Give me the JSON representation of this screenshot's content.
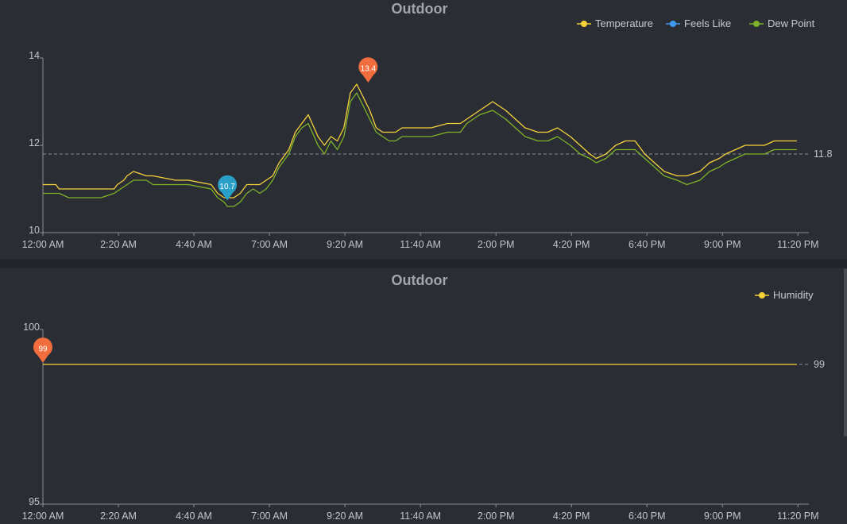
{
  "chart_data": [
    {
      "type": "line",
      "title": "Outdoor",
      "x_ticks": [
        "12:00 AM",
        "2:20 AM",
        "4:40 AM",
        "7:00 AM",
        "9:20 AM",
        "11:40 AM",
        "2:00 PM",
        "4:20 PM",
        "6:40 PM",
        "9:00 PM",
        "11:20 PM"
      ],
      "x_range_hours": [
        0,
        23.67
      ],
      "y_ticks": [
        "10",
        "12",
        "14"
      ],
      "ylim": [
        10,
        14
      ],
      "legend_position": "top-right",
      "grid": false,
      "series": [
        {
          "name": "Temperature",
          "color": "#f5d23a",
          "x": [
            0,
            0.4,
            0.5,
            2.2,
            2.3,
            2.5,
            2.6,
            2.8,
            3.2,
            3.4,
            4.1,
            4.5,
            5.2,
            5.4,
            5.6,
            5.7,
            5.9,
            6.1,
            6.3,
            6.5,
            6.7,
            6.9,
            7.1,
            7.3,
            7.6,
            7.8,
            8.0,
            8.2,
            8.5,
            8.7,
            8.9,
            9.1,
            9.3,
            9.5,
            9.7,
            9.9,
            10.1,
            10.3,
            10.5,
            10.7,
            10.9,
            11.1,
            11.5,
            12.0,
            12.5,
            12.9,
            13.1,
            13.5,
            13.9,
            14.1,
            14.3,
            14.6,
            14.9,
            15.3,
            15.6,
            15.9,
            16.1,
            16.3,
            16.6,
            16.9,
            17.1,
            17.4,
            17.7,
            18.0,
            18.3,
            18.6,
            18.9,
            19.2,
            19.6,
            19.9,
            20.3,
            20.6,
            20.9,
            21.1,
            21.4,
            21.7,
            22.0,
            22.3,
            22.6,
            22.9,
            23.3
          ],
          "y": [
            11.1,
            11.1,
            11.0,
            11.0,
            11.1,
            11.2,
            11.3,
            11.4,
            11.3,
            11.3,
            11.2,
            11.2,
            11.1,
            10.9,
            10.8,
            10.8,
            10.8,
            10.9,
            11.1,
            11.1,
            11.1,
            11.2,
            11.3,
            11.6,
            11.9,
            12.3,
            12.5,
            12.7,
            12.2,
            12.0,
            12.2,
            12.1,
            12.4,
            13.2,
            13.4,
            13.1,
            12.8,
            12.4,
            12.3,
            12.3,
            12.3,
            12.4,
            12.4,
            12.4,
            12.5,
            12.5,
            12.6,
            12.8,
            13.0,
            12.9,
            12.8,
            12.6,
            12.4,
            12.3,
            12.3,
            12.4,
            12.3,
            12.2,
            12.0,
            11.8,
            11.7,
            11.8,
            12.0,
            12.1,
            12.1,
            11.8,
            11.6,
            11.4,
            11.3,
            11.3,
            11.4,
            11.6,
            11.7,
            11.8,
            11.9,
            12.0,
            12.0,
            12.0,
            12.1,
            12.1,
            12.1
          ]
        },
        {
          "name": "Feels Like",
          "color": "#3f9bf2",
          "x": [],
          "y": []
        },
        {
          "name": "Dew Point",
          "color": "#7fb327",
          "x": [
            0,
            0.5,
            0.8,
            1.8,
            2.2,
            2.4,
            2.6,
            2.8,
            3.2,
            3.4,
            4.1,
            4.5,
            5.2,
            5.4,
            5.6,
            5.7,
            5.9,
            6.1,
            6.3,
            6.5,
            6.7,
            6.9,
            7.1,
            7.3,
            7.6,
            7.8,
            8.0,
            8.2,
            8.5,
            8.7,
            8.9,
            9.1,
            9.3,
            9.5,
            9.7,
            9.9,
            10.1,
            10.3,
            10.5,
            10.7,
            10.9,
            11.1,
            11.5,
            12.0,
            12.5,
            12.9,
            13.1,
            13.5,
            13.9,
            14.1,
            14.3,
            14.6,
            14.9,
            15.3,
            15.6,
            15.9,
            16.1,
            16.3,
            16.6,
            16.9,
            17.1,
            17.4,
            17.7,
            18.0,
            18.3,
            18.6,
            18.9,
            19.2,
            19.6,
            19.9,
            20.3,
            20.6,
            20.9,
            21.1,
            21.4,
            21.7,
            22.0,
            22.3,
            22.6,
            22.9,
            23.3
          ],
          "y": [
            10.9,
            10.9,
            10.8,
            10.8,
            10.9,
            11.0,
            11.1,
            11.2,
            11.2,
            11.1,
            11.1,
            11.1,
            11.0,
            10.8,
            10.7,
            10.6,
            10.6,
            10.7,
            10.9,
            11.0,
            10.9,
            11.0,
            11.2,
            11.5,
            11.8,
            12.2,
            12.4,
            12.5,
            12.0,
            11.8,
            12.1,
            11.9,
            12.2,
            13.0,
            13.2,
            12.9,
            12.6,
            12.3,
            12.2,
            12.1,
            12.1,
            12.2,
            12.2,
            12.2,
            12.3,
            12.3,
            12.5,
            12.7,
            12.8,
            12.7,
            12.6,
            12.4,
            12.2,
            12.1,
            12.1,
            12.2,
            12.1,
            12.0,
            11.8,
            11.7,
            11.6,
            11.7,
            11.9,
            11.9,
            11.9,
            11.7,
            11.5,
            11.3,
            11.2,
            11.1,
            11.2,
            11.4,
            11.5,
            11.6,
            11.7,
            11.8,
            11.8,
            11.8,
            11.9,
            11.9,
            11.9
          ]
        }
      ],
      "average": {
        "value": 11.8,
        "label": "11.8"
      },
      "max_marker": {
        "x": 10.05,
        "value": 13.4,
        "label": "13.4",
        "color": "#f26d3d"
      },
      "min_marker": {
        "x": 5.7,
        "value": 10.7,
        "label": "10.7",
        "color": "#2aa0c8"
      }
    },
    {
      "type": "line",
      "title": "Outdoor",
      "x_ticks": [
        "12:00 AM",
        "2:20 AM",
        "4:40 AM",
        "7:00 AM",
        "9:20 AM",
        "11:40 AM",
        "2:00 PM",
        "4:20 PM",
        "6:40 PM",
        "9:00 PM",
        "11:20 PM"
      ],
      "x_range_hours": [
        0,
        23.67
      ],
      "y_ticks": [
        "95",
        "100"
      ],
      "ylim": [
        95,
        100
      ],
      "legend_position": "top-right",
      "grid": false,
      "series": [
        {
          "name": "Humidity",
          "color": "#f5d23a",
          "x": [
            0,
            23.3
          ],
          "y": [
            99,
            99
          ]
        }
      ],
      "average": {
        "value": 99,
        "label": "99"
      },
      "max_marker": {
        "x": 0,
        "value": 99,
        "label": "99",
        "color": "#f26d3d"
      }
    }
  ]
}
